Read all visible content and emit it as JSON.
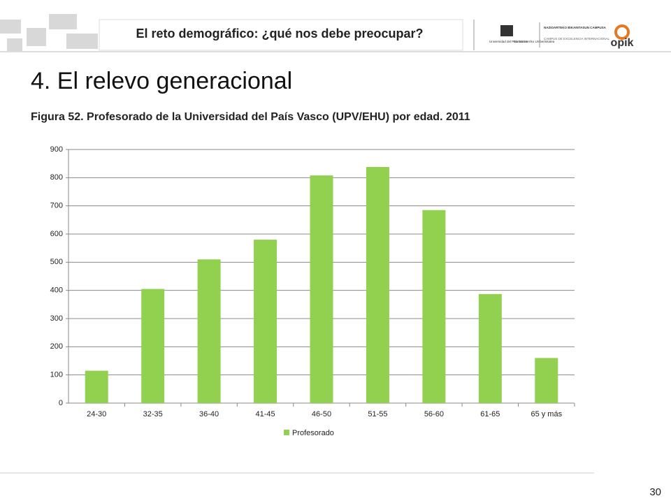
{
  "header": {
    "title": "El reto demográfico: ¿qué nos debe preocupar?",
    "logo_upv_1": "Universidad del País Vasco",
    "logo_upv_2": "Euskal Herriko Unibertsitatea",
    "logo_campus_1": "NAZIOARTEKO BIKAINTASUN CAMPUSA",
    "logo_campus_2": "CAMPUS DE EXCELENCIA INTERNACIONAL",
    "logo_opik": "opik"
  },
  "slide_title": "4. El relevo generacional",
  "page_number": "30",
  "chart_data": {
    "type": "bar",
    "title": "Figura 52. Profesorado de la Universidad del País Vasco (UPV/EHU) por edad. 2011",
    "categories": [
      "24-30",
      "32-35",
      "36-40",
      "41-45",
      "46-50",
      "51-55",
      "56-60",
      "61-65",
      "65 y más"
    ],
    "series": [
      {
        "name": "Profesorado",
        "color": "#92d050",
        "values": [
          115,
          405,
          510,
          580,
          808,
          838,
          685,
          387,
          160
        ]
      }
    ],
    "ylim": [
      0,
      900
    ],
    "yticks": [
      0,
      100,
      200,
      300,
      400,
      500,
      600,
      700,
      800,
      900
    ],
    "grid": true,
    "legend": "bottom"
  }
}
